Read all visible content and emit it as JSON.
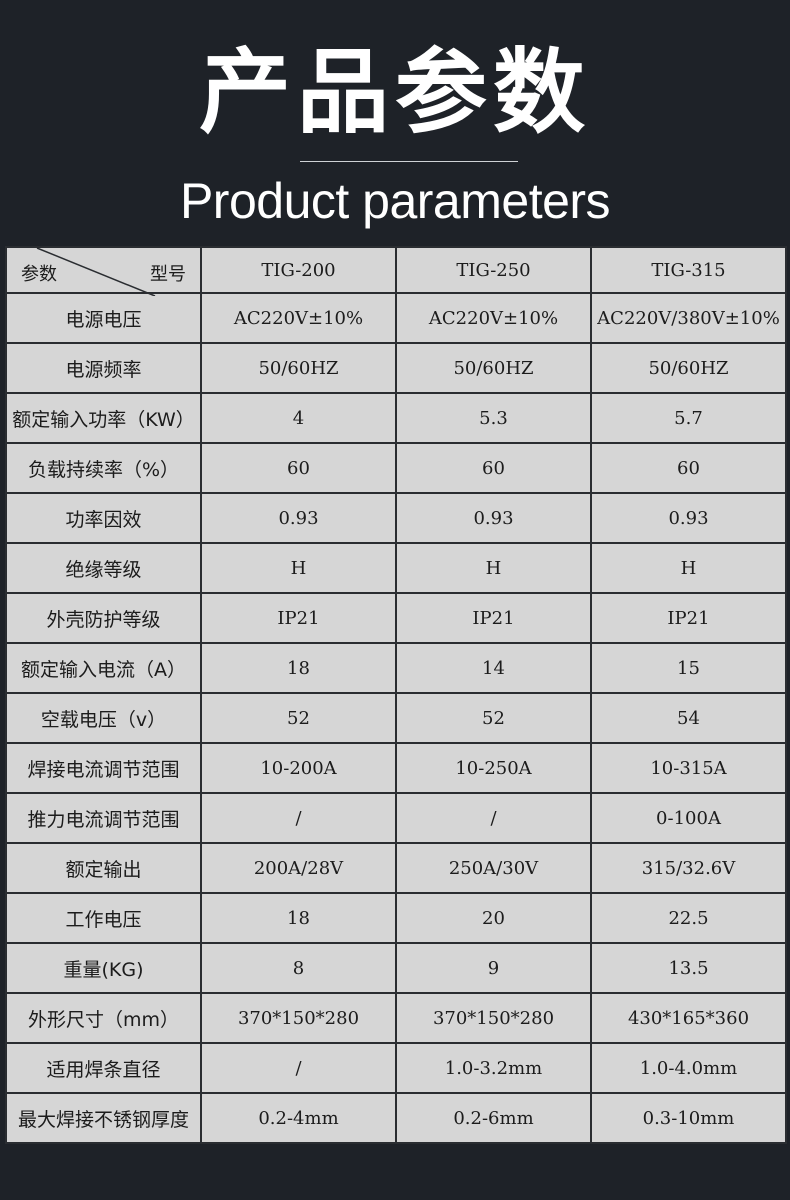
{
  "header": {
    "title_cn": "产品参数",
    "title_en": "Product parameters"
  },
  "table": {
    "corner_param": "参数",
    "corner_model": "型号",
    "models": [
      "TIG-200",
      "TIG-250",
      "TIG-315"
    ],
    "rows": [
      {
        "label": "电源电压",
        "values": [
          "AC220V±10%",
          "AC220V±10%",
          "AC220V/380V±10%"
        ]
      },
      {
        "label": "电源频率",
        "values": [
          "50/60HZ",
          "50/60HZ",
          "50/60HZ"
        ]
      },
      {
        "label": "额定输入功率（KW）",
        "values": [
          "4",
          "5.3",
          "5.7"
        ]
      },
      {
        "label": "负载持续率（%）",
        "values": [
          "60",
          "60",
          "60"
        ]
      },
      {
        "label": "功率因效",
        "values": [
          "0.93",
          "0.93",
          "0.93"
        ]
      },
      {
        "label": "绝缘等级",
        "values": [
          "H",
          "H",
          "H"
        ]
      },
      {
        "label": "外壳防护等级",
        "values": [
          "IP21",
          "IP21",
          "IP21"
        ]
      },
      {
        "label": "额定输入电流（A）",
        "values": [
          "18",
          "14",
          "15"
        ]
      },
      {
        "label": "空载电压（v）",
        "values": [
          "52",
          "52",
          "54"
        ]
      },
      {
        "label": "焊接电流调节范围",
        "values": [
          "10-200A",
          "10-250A",
          "10-315A"
        ]
      },
      {
        "label": "推力电流调节范围",
        "values": [
          "/",
          "/",
          "0-100A"
        ]
      },
      {
        "label": "额定输出",
        "values": [
          "200A/28V",
          "250A/30V",
          "315/32.6V"
        ]
      },
      {
        "label": "工作电压",
        "values": [
          "18",
          "20",
          "22.5"
        ]
      },
      {
        "label": "重量(KG)",
        "values": [
          "8",
          "9",
          "13.5"
        ]
      },
      {
        "label": "外形尺寸（mm）",
        "values": [
          "370*150*280",
          "370*150*280",
          "430*165*360"
        ]
      },
      {
        "label": "适用焊条直径",
        "values": [
          "/",
          "1.0-3.2mm",
          "1.0-4.0mm"
        ]
      },
      {
        "label": "最大焊接不锈钢厚度",
        "values": [
          "0.2-4mm",
          "0.2-6mm",
          "0.3-10mm"
        ]
      }
    ]
  }
}
